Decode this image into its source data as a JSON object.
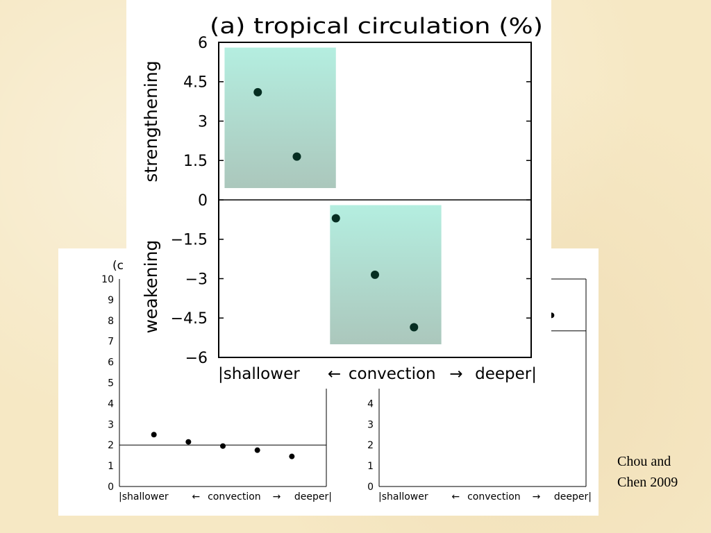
{
  "chart_data": [
    {
      "id": "front",
      "type": "scatter",
      "title": "(a) tropical circulation (%)",
      "ylabel_top": "strengthening",
      "ylabel_bottom": "weakening",
      "xlabel": {
        "left": "|shallower",
        "arrow_left": "←",
        "center": "convection",
        "arrow_right": "→",
        "right": "deeper|"
      },
      "ylim": [
        -6,
        6
      ],
      "y_ticks": [
        6,
        4.5,
        3,
        1.5,
        0,
        -1.5,
        -3,
        -4.5,
        -6
      ],
      "y_tick_labels": [
        "6",
        "4.5",
        "3",
        "1.5",
        "0",
        "−1.5",
        "−3",
        "−4.5",
        "−6"
      ],
      "xlim": [
        0,
        8
      ],
      "x": [
        1,
        2,
        3,
        4,
        5
      ],
      "values": [
        4.1,
        1.65,
        -0.7,
        -2.85,
        -4.85
      ],
      "reference_line": 0,
      "shaded_boxes": [
        {
          "x": [
            0.15,
            3.0
          ],
          "y": [
            0.45,
            5.8
          ]
        },
        {
          "x": [
            2.85,
            5.7
          ],
          "y": [
            -5.5,
            -0.2
          ]
        }
      ],
      "colors": {
        "marker": "#062e22",
        "box_top": "#b4eee0",
        "box_bottom": "#abc7bc"
      }
    },
    {
      "id": "back-left",
      "type": "scatter",
      "title": "(c",
      "xlabel": {
        "left": "|shallower",
        "arrow_left": "←",
        "center": "convection",
        "arrow_right": "→",
        "right": "deeper|"
      },
      "ylim": [
        0,
        10
      ],
      "y_ticks": [
        0,
        1,
        2,
        3,
        4,
        5,
        6,
        7,
        8,
        9,
        10
      ],
      "y_tick_labels": [
        "0",
        "1",
        "2",
        "3",
        "4",
        "5",
        "6",
        "7",
        "8",
        "9",
        "10"
      ],
      "xlim": [
        0,
        6
      ],
      "x": [
        1,
        2,
        3,
        4,
        5
      ],
      "values": [
        2.5,
        2.15,
        1.95,
        1.75,
        1.45
      ],
      "reference_line": 2
    },
    {
      "id": "back-right",
      "type": "scatter",
      "xlabel": {
        "left": "|shallower",
        "arrow_left": "←",
        "center": "convection",
        "arrow_right": "→",
        "right": "deeper|"
      },
      "ylim": [
        0,
        10
      ],
      "y_ticks": [
        0,
        1,
        2,
        3,
        4
      ],
      "y_tick_labels": [
        "0",
        "1",
        "2",
        "3",
        "4"
      ],
      "xlim": [
        0,
        6
      ],
      "x": [
        5
      ],
      "values": [
        8.25
      ],
      "reference_line": 7.5
    }
  ],
  "credit": {
    "line1": "Chou and",
    "line2": "Chen 2009"
  }
}
